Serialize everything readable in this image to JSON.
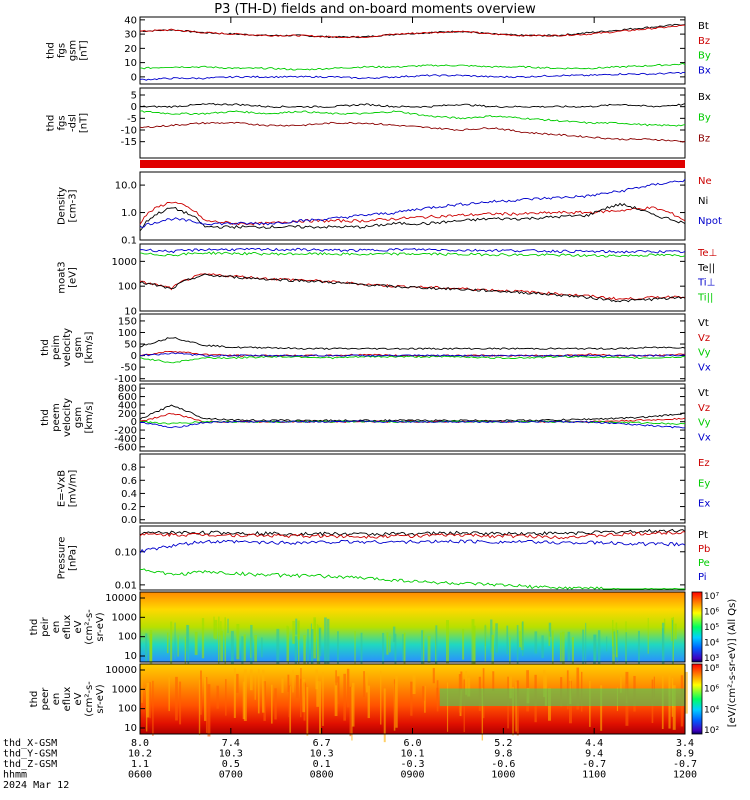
{
  "title": "P3 (TH-D) fields and on-board moments overview",
  "date_label": "2024 Mar 12",
  "colorbar_label": "[eV/(cm²-s-sr-eV)] (All Qs)",
  "chart_data": [
    {
      "type": "line",
      "ylabel": [
        "thd",
        "fgs",
        "gsm",
        "[nT]"
      ],
      "ylim": [
        -5,
        42
      ],
      "ticks": [
        "40",
        "30",
        "20",
        "10",
        "0"
      ],
      "tick_values": [
        40,
        30,
        20,
        10,
        0
      ],
      "series": [
        {
          "name": "Bt",
          "color": "#000000",
          "values": [
            32,
            33,
            31,
            30,
            29,
            29,
            28,
            28,
            30,
            31,
            32,
            30,
            29,
            29,
            31,
            33,
            35,
            37
          ]
        },
        {
          "name": "Bz",
          "color": "#cc0000",
          "values": [
            32,
            33,
            31,
            30,
            29,
            29,
            28,
            28,
            30,
            31,
            32,
            30,
            29,
            29,
            30,
            32,
            34,
            36
          ]
        },
        {
          "name": "By",
          "color": "#00cc00",
          "values": [
            6,
            7,
            7,
            6,
            6,
            5,
            6,
            7,
            7,
            8,
            8,
            7,
            7,
            6,
            6,
            7,
            8,
            9
          ]
        },
        {
          "name": "Bx",
          "color": "#0000cc",
          "values": [
            -2,
            -1,
            -1,
            0,
            0,
            0,
            0,
            -1,
            0,
            1,
            1,
            0,
            0,
            1,
            1,
            2,
            2,
            3
          ]
        }
      ]
    },
    {
      "type": "line",
      "ylabel": [
        "thd",
        "fgs",
        "-dsl",
        "[nT]"
      ],
      "ylim": [
        -22,
        8
      ],
      "ticks": [
        "5",
        "0",
        "-5",
        "-10",
        "-15"
      ],
      "tick_values": [
        5,
        0,
        -5,
        -10,
        -15
      ],
      "series": [
        {
          "name": "Bx",
          "color": "#000000",
          "values": [
            0,
            0,
            1,
            1,
            0,
            0,
            0,
            1,
            0,
            0,
            1,
            0,
            0,
            0,
            0,
            1,
            0,
            1
          ]
        },
        {
          "name": "By",
          "color": "#00cc00",
          "values": [
            -2,
            -3,
            -3,
            -2,
            -3,
            -2,
            -3,
            -3,
            -2,
            -4,
            -5,
            -4,
            -5,
            -6,
            -7,
            -7,
            -8,
            -8
          ]
        },
        {
          "name": "Bz",
          "color": "#8b0000",
          "values": [
            -9,
            -8,
            -7,
            -7,
            -8,
            -8,
            -7,
            -7,
            -8,
            -9,
            -10,
            -9,
            -11,
            -12,
            -13,
            -14,
            -14,
            -15
          ]
        }
      ]
    },
    {
      "type": "line",
      "ylabel": [
        "Density",
        "[cm-3]"
      ],
      "scale": "log",
      "ylim": [
        0.1,
        30
      ],
      "ticks": [
        "10.0",
        "1.0",
        "0.1"
      ],
      "tick_values": [
        10,
        1,
        0.1
      ],
      "series": [
        {
          "name": "Ne",
          "color": "#cc0000",
          "values": [
            0.4,
            2.5,
            0.5,
            0.4,
            0.4,
            0.5,
            0.5,
            0.5,
            0.6,
            0.7,
            0.8,
            0.9,
            0.9,
            1.0,
            1.0,
            1.2,
            1.5,
            0.5
          ]
        },
        {
          "name": "Ni",
          "color": "#000000",
          "values": [
            0.2,
            1.5,
            0.3,
            0.3,
            0.3,
            0.3,
            0.3,
            0.3,
            0.4,
            0.4,
            0.5,
            0.6,
            0.6,
            0.7,
            0.8,
            2,
            0.8,
            0.4
          ]
        },
        {
          "name": "Npot",
          "color": "#0000cc",
          "values": [
            0.3,
            0.6,
            0.4,
            0.4,
            0.4,
            0.5,
            0.6,
            0.8,
            1.0,
            1.5,
            2,
            2.5,
            3,
            3.5,
            4,
            6,
            10,
            15
          ]
        }
      ]
    },
    {
      "type": "line",
      "ylabel": [
        "moat3",
        "[eV]"
      ],
      "scale": "log",
      "ylim": [
        10,
        5000
      ],
      "ticks": [
        "1000",
        "100",
        "10"
      ],
      "tick_values": [
        1000,
        100,
        10
      ],
      "series": [
        {
          "name": "Te⊥",
          "color": "#cc0000",
          "values": [
            150,
            80,
            300,
            250,
            200,
            180,
            150,
            120,
            100,
            90,
            80,
            70,
            60,
            50,
            40,
            30,
            35,
            40
          ]
        },
        {
          "name": "Te||",
          "color": "#000000",
          "values": [
            140,
            75,
            280,
            230,
            190,
            170,
            140,
            115,
            95,
            85,
            75,
            65,
            55,
            45,
            35,
            25,
            30,
            35
          ]
        },
        {
          "name": "Ti⊥",
          "color": "#0000cc",
          "values": [
            3000,
            2500,
            3000,
            3000,
            3000,
            3000,
            2800,
            2800,
            3000,
            3000,
            2800,
            2800,
            2700,
            2600,
            2500,
            2400,
            2500,
            2400
          ]
        },
        {
          "name": "Ti||",
          "color": "#00cc00",
          "values": [
            2000,
            1800,
            2200,
            2100,
            2000,
            2000,
            2000,
            1900,
            2000,
            2000,
            1900,
            1900,
            1800,
            1800,
            1700,
            1700,
            1800,
            1700
          ]
        }
      ]
    },
    {
      "type": "line",
      "ylabel": [
        "thd",
        "peim",
        "velocity",
        "gsm",
        "[km/s]"
      ],
      "ylim": [
        -110,
        180
      ],
      "ticks": [
        "150",
        "100",
        "50",
        "0",
        "-50",
        "-100"
      ],
      "tick_values": [
        150,
        100,
        50,
        0,
        -50,
        -100
      ],
      "series": [
        {
          "name": "Vt",
          "color": "#000000",
          "values": [
            40,
            80,
            45,
            35,
            35,
            30,
            30,
            30,
            30,
            30,
            30,
            30,
            30,
            30,
            30,
            30,
            35,
            35
          ]
        },
        {
          "name": "Vz",
          "color": "#cc0000",
          "values": [
            0,
            20,
            5,
            0,
            0,
            0,
            0,
            5,
            0,
            0,
            0,
            0,
            0,
            0,
            5,
            0,
            0,
            5
          ]
        },
        {
          "name": "Vy",
          "color": "#00cc00",
          "values": [
            -10,
            -30,
            -10,
            -10,
            -5,
            -5,
            -10,
            -5,
            -5,
            -5,
            -5,
            -10,
            -10,
            -5,
            -5,
            -10,
            -10,
            -5
          ]
        },
        {
          "name": "Vx",
          "color": "#0000cc",
          "values": [
            0,
            10,
            0,
            0,
            0,
            0,
            0,
            0,
            0,
            0,
            0,
            0,
            0,
            0,
            0,
            0,
            0,
            0
          ]
        }
      ]
    },
    {
      "type": "line",
      "ylabel": [
        "thd",
        "peem",
        "velocity",
        "gsm",
        "[km/s]"
      ],
      "ylim": [
        -700,
        900
      ],
      "ticks": [
        "800",
        "600",
        "400",
        "200",
        "0",
        "-200",
        "-400",
        "-600"
      ],
      "tick_values": [
        800,
        600,
        400,
        200,
        0,
        -200,
        -400,
        -600
      ],
      "series": [
        {
          "name": "Vt",
          "color": "#000000",
          "values": [
            60,
            400,
            80,
            40,
            30,
            30,
            30,
            30,
            30,
            30,
            30,
            30,
            30,
            40,
            60,
            80,
            120,
            200
          ]
        },
        {
          "name": "Vz",
          "color": "#cc0000",
          "values": [
            0,
            200,
            0,
            0,
            0,
            0,
            0,
            0,
            0,
            0,
            0,
            0,
            0,
            0,
            0,
            20,
            40,
            80
          ]
        },
        {
          "name": "Vy",
          "color": "#00cc00",
          "values": [
            0,
            -50,
            0,
            0,
            0,
            0,
            0,
            0,
            0,
            0,
            0,
            0,
            0,
            0,
            0,
            -20,
            -30,
            -60
          ]
        },
        {
          "name": "Vx",
          "color": "#0000cc",
          "values": [
            0,
            -150,
            -20,
            0,
            0,
            0,
            0,
            0,
            0,
            0,
            0,
            0,
            0,
            0,
            -10,
            -50,
            -100,
            -150
          ]
        }
      ]
    },
    {
      "type": "line",
      "ylabel": [
        "E=-VxB",
        "[mV/m]"
      ],
      "ylim": [
        -0.05,
        1.0
      ],
      "ticks": [
        "0.8",
        "0.6",
        "0.4",
        "0.2",
        "0.0"
      ],
      "tick_values": [
        0.8,
        0.6,
        0.4,
        0.2,
        0
      ],
      "series": [
        {
          "name": "Ez",
          "color": "#cc0000",
          "values": []
        },
        {
          "name": "Ey",
          "color": "#00cc00",
          "values": []
        },
        {
          "name": "Ex",
          "color": "#0000cc",
          "values": []
        }
      ]
    },
    {
      "type": "line",
      "ylabel": [
        "Pressure",
        "[nPa]"
      ],
      "scale": "log",
      "ylim": [
        0.007,
        0.6
      ],
      "ticks": [
        "0.10",
        "0.01"
      ],
      "tick_values": [
        0.1,
        0.01
      ],
      "series": [
        {
          "name": "Pt",
          "color": "#000000",
          "values": [
            0.36,
            0.38,
            0.38,
            0.37,
            0.36,
            0.35,
            0.35,
            0.34,
            0.35,
            0.36,
            0.37,
            0.36,
            0.36,
            0.36,
            0.38,
            0.4,
            0.42,
            0.45
          ]
        },
        {
          "name": "Pb",
          "color": "#cc0000",
          "values": [
            0.33,
            0.33,
            0.33,
            0.32,
            0.31,
            0.3,
            0.3,
            0.29,
            0.3,
            0.31,
            0.32,
            0.3,
            0.3,
            0.28,
            0.3,
            0.33,
            0.36,
            0.4
          ]
        },
        {
          "name": "Pe",
          "color": "#00cc00",
          "values": [
            0.03,
            0.02,
            0.025,
            0.022,
            0.02,
            0.019,
            0.018,
            0.016,
            0.014,
            0.012,
            0.011,
            0.01,
            0.009,
            0.008,
            0.008,
            0.007,
            0.007,
            0.007
          ]
        },
        {
          "name": "Pi",
          "color": "#0000cc",
          "values": [
            0.1,
            0.15,
            0.2,
            0.2,
            0.19,
            0.19,
            0.2,
            0.2,
            0.2,
            0.2,
            0.21,
            0.2,
            0.2,
            0.19,
            0.19,
            0.18,
            0.17,
            0.17
          ]
        }
      ]
    },
    {
      "type": "heatmap",
      "ylabel": [
        "thd",
        "peir",
        "en",
        "eflux",
        "eV",
        "(cm²-s-",
        "sr-eV)"
      ],
      "ticks": [
        "10000",
        "1000",
        "100",
        "10"
      ],
      "colorbar_ticks": [
        "10⁷",
        "10⁶",
        "10⁵",
        "10⁴",
        "10³"
      ]
    },
    {
      "type": "heatmap",
      "ylabel": [
        "thd",
        "peer",
        "en",
        "eflux",
        "eV",
        "(cm²-s-",
        "sr-eV)"
      ],
      "ticks": [
        "10000",
        "1000",
        "100",
        "10"
      ],
      "colorbar_ticks": [
        "10⁸",
        "10⁶",
        "10⁴",
        "10²"
      ]
    }
  ],
  "x_axis": {
    "rows": [
      {
        "label": "thd_X-GSM",
        "values": [
          "8.0",
          "7.4",
          "6.7",
          "6.0",
          "5.2",
          "4.4",
          "3.4"
        ]
      },
      {
        "label": "thd_Y-GSM",
        "values": [
          "10.2",
          "10.3",
          "10.3",
          "10.1",
          "9.8",
          "9.4",
          "8.9"
        ]
      },
      {
        "label": "thd_Z-GSM",
        "values": [
          "1.1",
          "0.5",
          "0.1",
          "-0.3",
          "-0.6",
          "-0.7",
          "-0.7"
        ]
      },
      {
        "label": "hhmm",
        "values": [
          "0600",
          "0700",
          "0800",
          "0900",
          "1000",
          "1100",
          "1200"
        ]
      }
    ]
  }
}
